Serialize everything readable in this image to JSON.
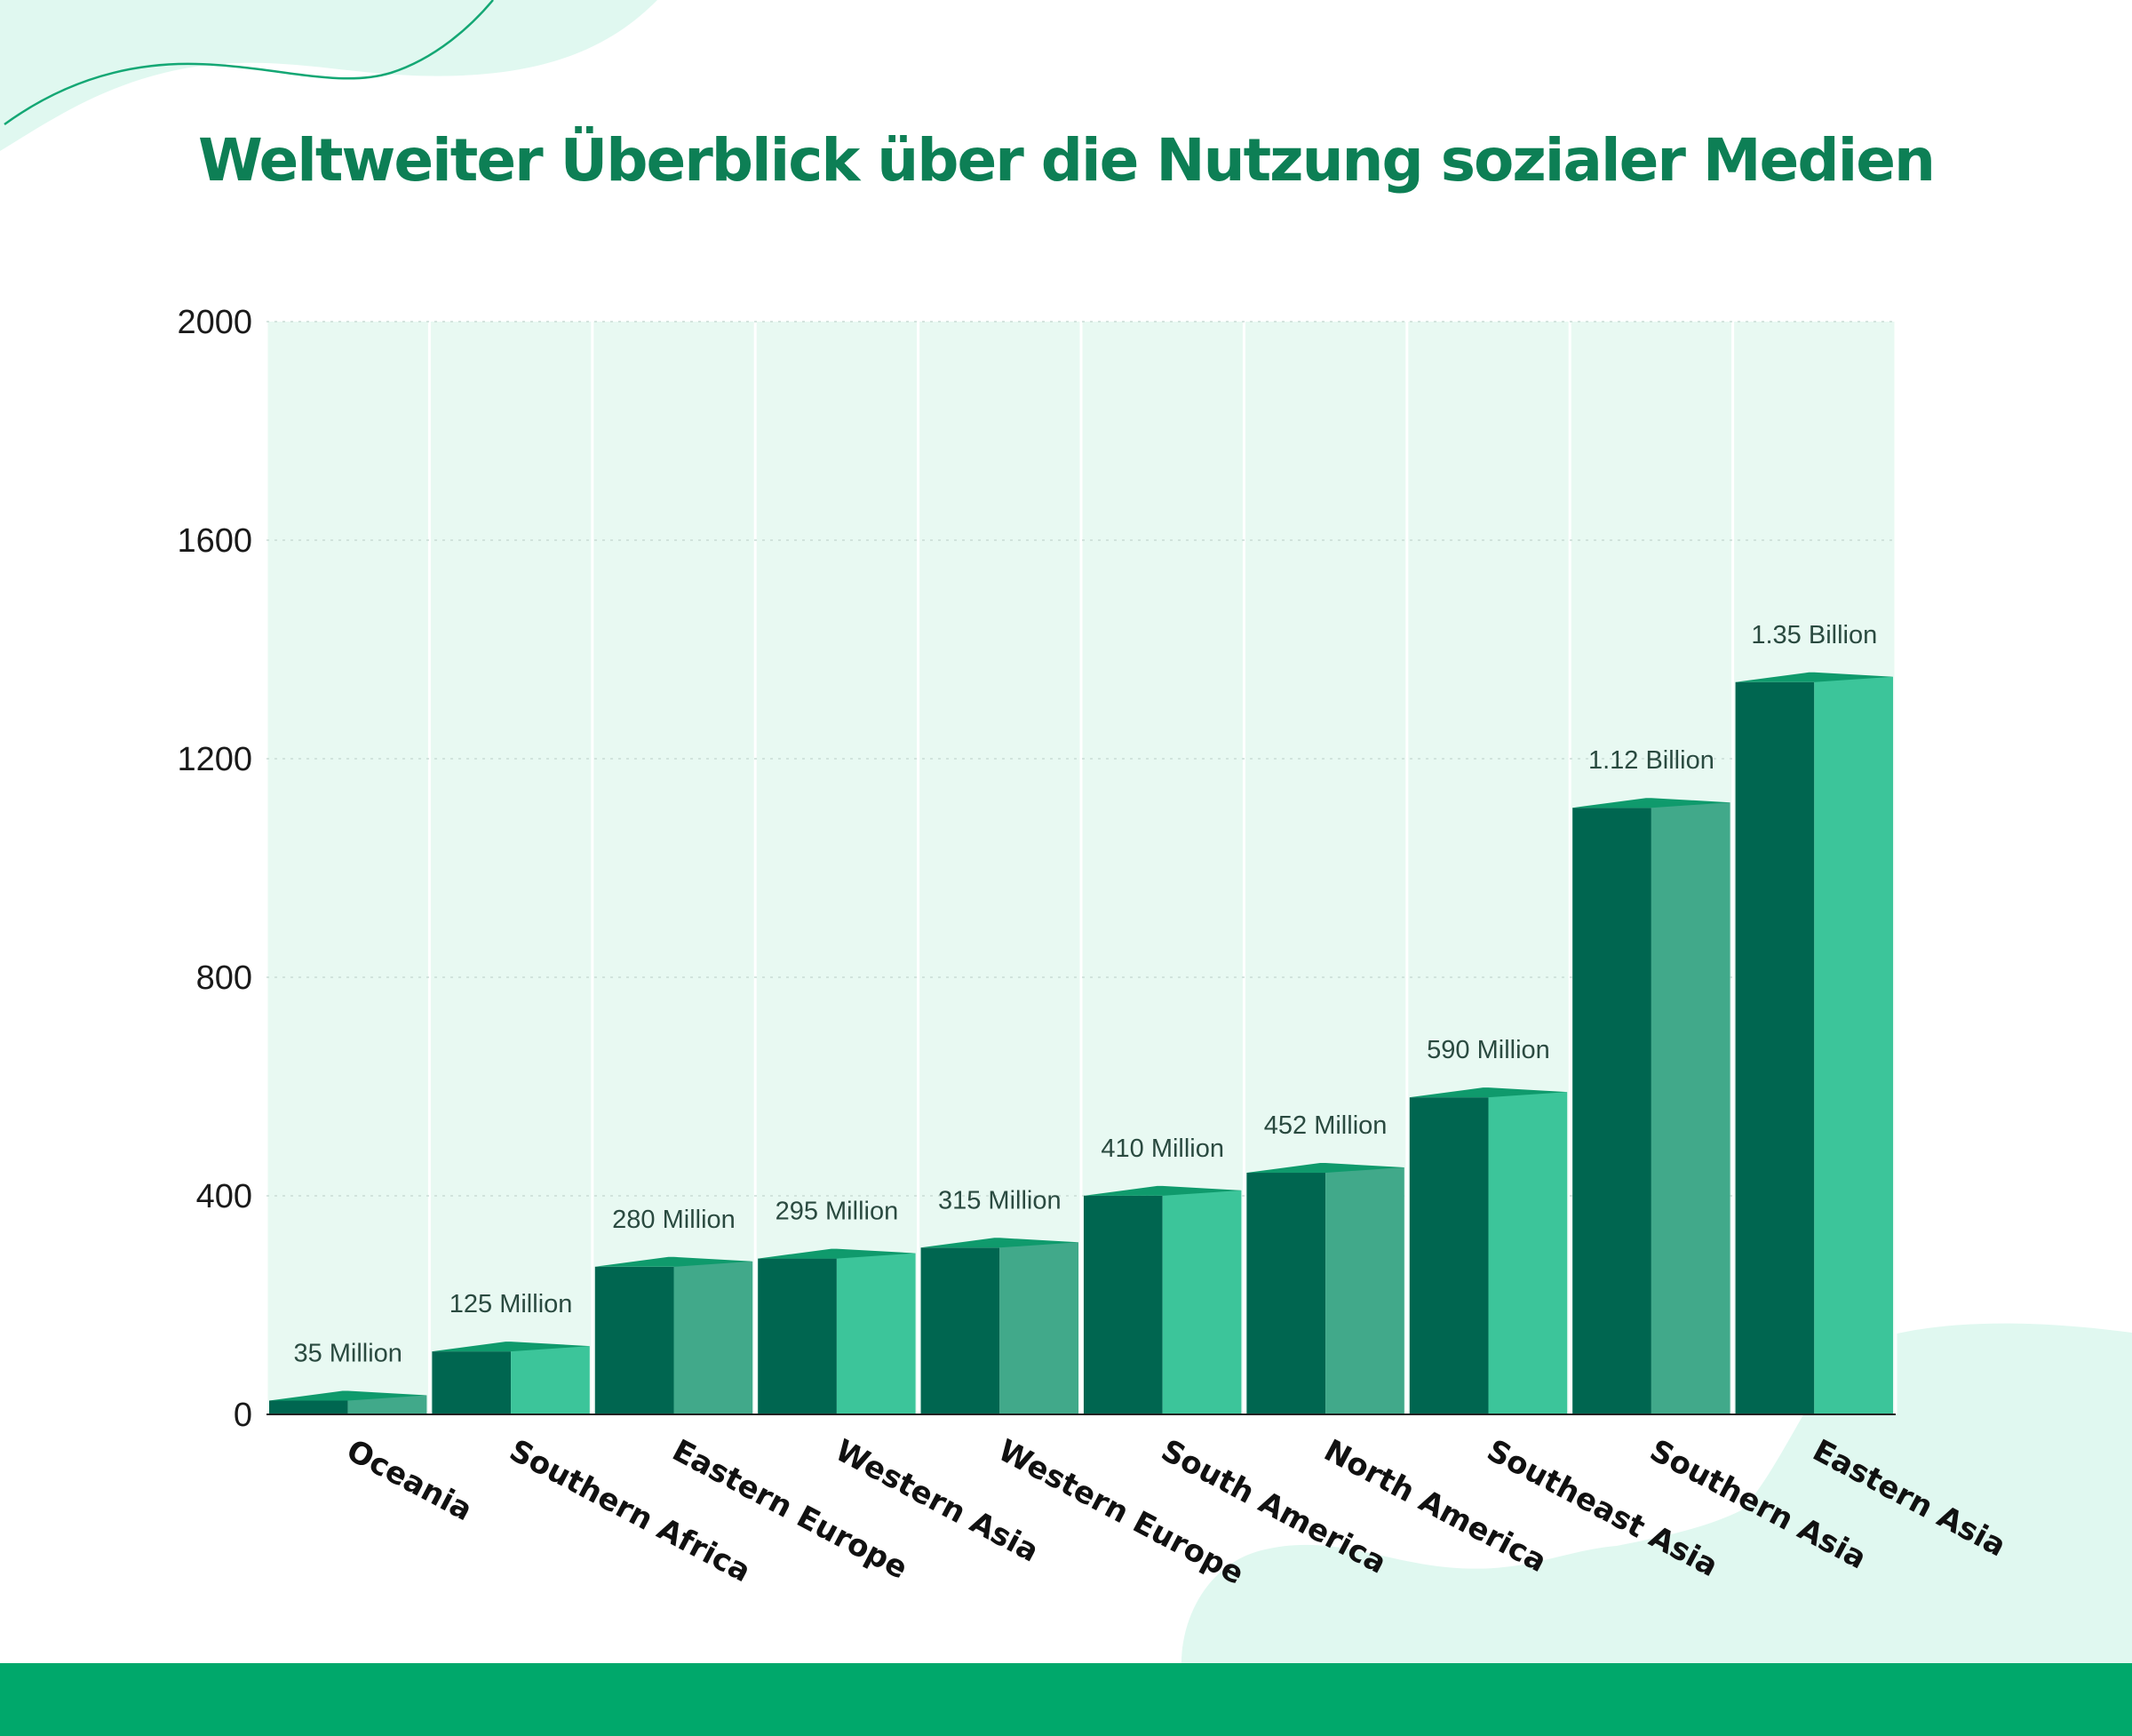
{
  "title": "Weltweiter Überblick über die Nutzung sozialer Medien",
  "colors": {
    "title": "#0d7f55",
    "plot_background": "#e8f9f2",
    "bar_dark": "#006650",
    "bar_top": "#0f9a6c",
    "bar_light_a": "#41a98a",
    "bar_light_b": "#3cc59a",
    "footer": "#00a86b",
    "blob": "#e0f8f0"
  },
  "chart_data": {
    "type": "bar",
    "title": "Weltweiter Überblick über die Nutzung sozialer Medien",
    "xlabel": "",
    "ylabel": "",
    "ylim": [
      0,
      2000
    ],
    "yticks": [
      0,
      400,
      800,
      1200,
      1600,
      2000
    ],
    "grid": true,
    "categories": [
      "Oceania",
      "Southern Africa",
      "Eastern Europe",
      "Western Asia",
      "Western Europe",
      "South America",
      "North America",
      "Southeast Asia",
      "Southern Asia",
      "Eastern Asia"
    ],
    "values": [
      35,
      125,
      280,
      295,
      315,
      410,
      452,
      590,
      1120,
      1350
    ],
    "data_labels": [
      "35 Million",
      "125 Million",
      "280 Million",
      "295 Million",
      "315 Million",
      "410 Million",
      "452 Million",
      "590 Million",
      "1.12 Billion",
      "1.35 Billion"
    ]
  }
}
